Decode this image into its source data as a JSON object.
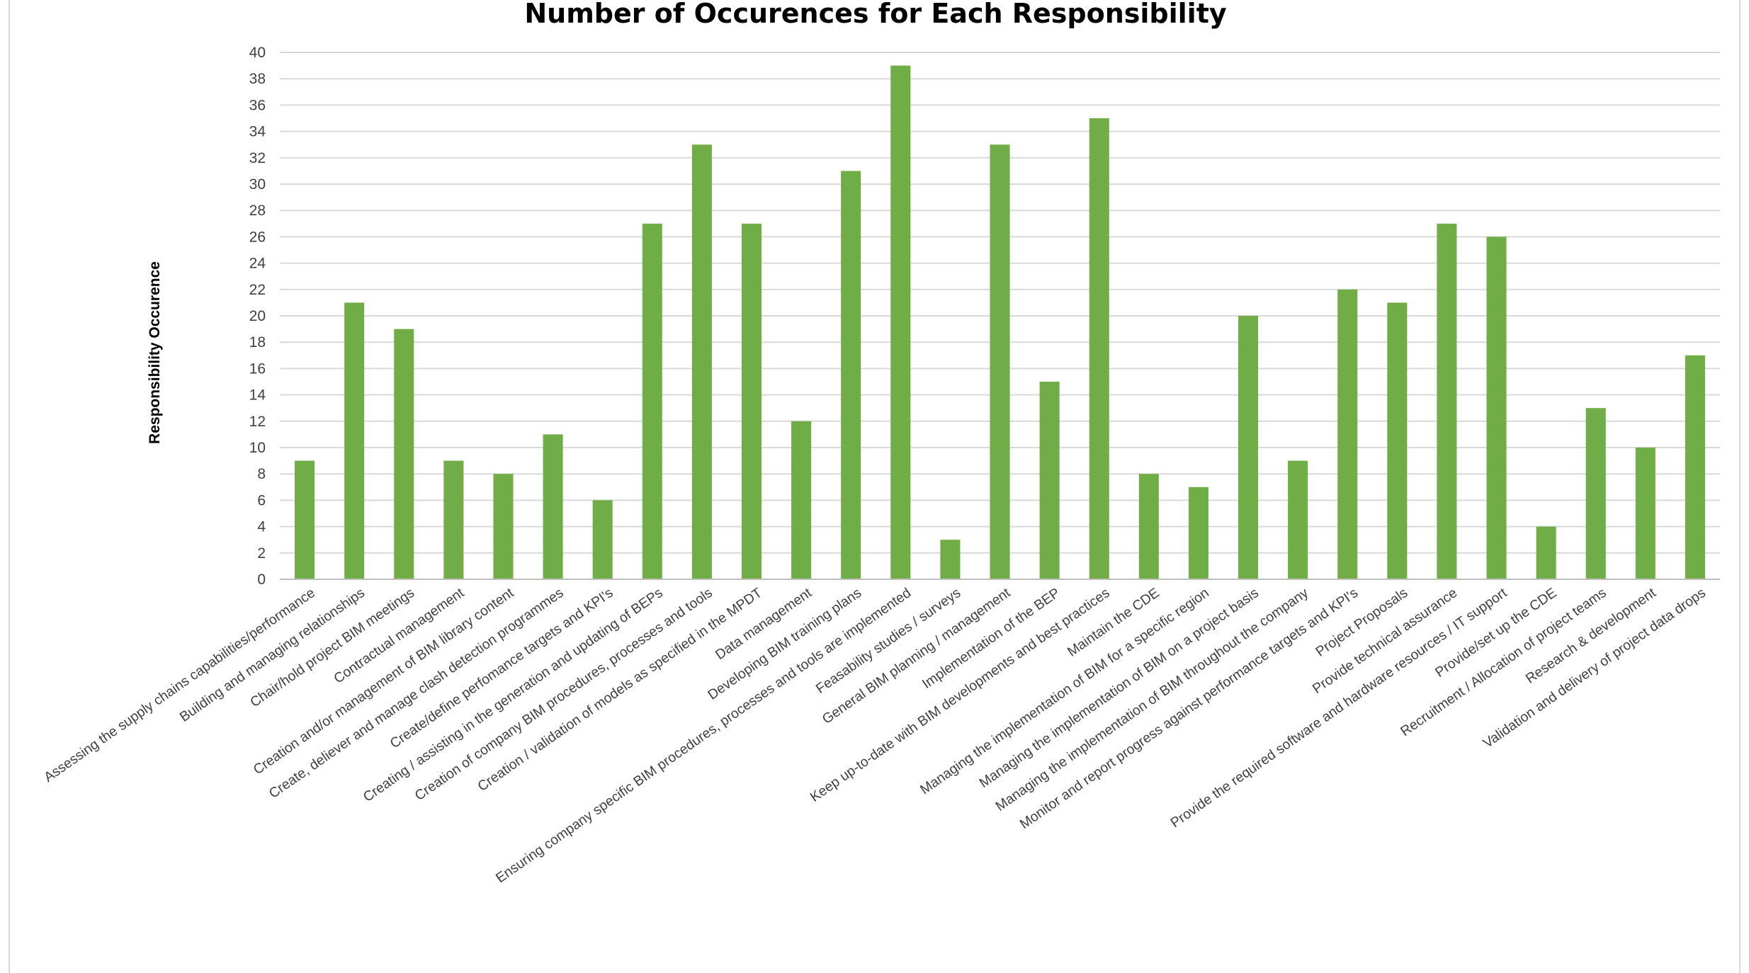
{
  "chart_data": {
    "type": "bar",
    "title": "Number of Occurences for Each Responsibility",
    "xlabel": "",
    "ylabel": "Responsibility Occurence",
    "ylim": [
      0,
      40
    ],
    "yticks": [
      0,
      2,
      4,
      6,
      8,
      10,
      12,
      14,
      16,
      18,
      20,
      22,
      24,
      26,
      28,
      30,
      32,
      34,
      36,
      38,
      40
    ],
    "grid": true,
    "legend": "none",
    "bar_color": "#70ad47",
    "categories": [
      "Assessing the supply chains capabilities/performance",
      "Building and managing relationships",
      "Chair/hold project BIM meetings",
      "Contractual management",
      "Creation and/or management of BIM library content",
      "Create, deliever and manage clash detection programmes",
      "Create/define perfomance targets and KPI's",
      "Creating / assisting in the generation and updating of BEPs",
      "Creation of company BIM procedures, processes and tools",
      "Creation / validation of models as specified in the MPDT",
      "Data management",
      "Developing BIM training plans",
      "Ensuring company specific BIM procedures, processes and tools are implemented",
      "Feasability studies / surveys",
      "General BIM planning / management",
      "Implementation of the BEP",
      "Keep up-to-date with BIM developments and best practices",
      "Maintain the CDE",
      "Managing the implementation of BIM for a specific region",
      "Managing the implementation of BIM on a project basis",
      "Managing the implementation of BIM throughout the company",
      "Monitor and report progress against performance targets and KPI's",
      "Project Proposals",
      "Provide technical assurance",
      "Provide the required software and hardware resources / IT support",
      "Provide/set up the CDE",
      "Recruitment / Allocation of project teams",
      "Research & development",
      "Validation and delivery of project data drops"
    ],
    "values": [
      9,
      21,
      19,
      9,
      8,
      11,
      6,
      27,
      33,
      27,
      12,
      31,
      39,
      3,
      33,
      15,
      35,
      8,
      7,
      20,
      9,
      22,
      21,
      27,
      26,
      4,
      13,
      10,
      17
    ]
  }
}
